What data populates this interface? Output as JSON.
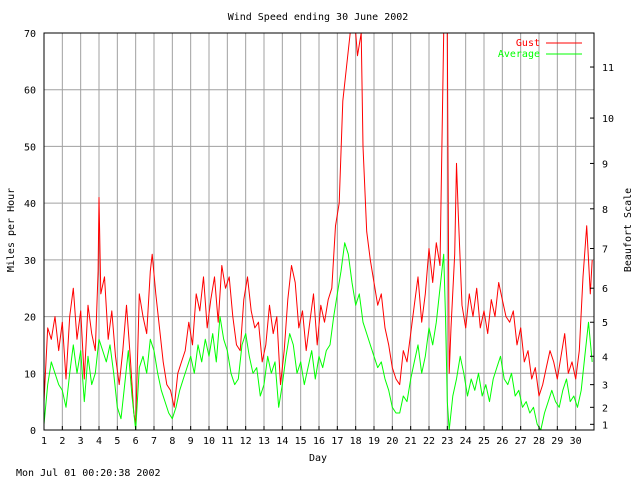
{
  "chart_data": {
    "type": "line",
    "title": "Wind Speed ending 30 June 2002",
    "xlabel": "Day",
    "ylabel": "Miles per Hour",
    "y2label": "Beaufort Scale",
    "footer": "Mon Jul 01 00:20:38 2002",
    "xlim": [
      1,
      31
    ],
    "ylim": [
      0,
      70
    ],
    "x_ticks": [
      "1",
      "2",
      "3",
      "4",
      "5",
      "6",
      "7",
      "8",
      "9",
      "10",
      "11",
      "12",
      "13",
      "14",
      "15",
      "16",
      "17",
      "18",
      "19",
      "20",
      "21",
      "22",
      "23",
      "24",
      "25",
      "26",
      "27",
      "28",
      "29",
      "30"
    ],
    "y_ticks": [
      "0",
      "10",
      "20",
      "30",
      "40",
      "50",
      "60",
      "70"
    ],
    "beaufort_ticks": [
      {
        "label": "1",
        "mph": 1
      },
      {
        "label": "2",
        "mph": 4
      },
      {
        "label": "3",
        "mph": 8
      },
      {
        "label": "4",
        "mph": 13
      },
      {
        "label": "5",
        "mph": 19
      },
      {
        "label": "6",
        "mph": 25
      },
      {
        "label": "7",
        "mph": 32
      },
      {
        "label": "8",
        "mph": 39
      },
      {
        "label": "9",
        "mph": 47
      },
      {
        "label": "10",
        "mph": 55
      },
      {
        "label": "11",
        "mph": 64
      }
    ],
    "grid": true,
    "legend_position": "top-right",
    "series": [
      {
        "name": "Gust",
        "color": "#ff0000",
        "points": [
          [
            1.0,
            5
          ],
          [
            1.2,
            18
          ],
          [
            1.4,
            16
          ],
          [
            1.6,
            20
          ],
          [
            1.8,
            14
          ],
          [
            2.0,
            19
          ],
          [
            2.2,
            9
          ],
          [
            2.4,
            20
          ],
          [
            2.6,
            25
          ],
          [
            2.8,
            16
          ],
          [
            3.0,
            21
          ],
          [
            3.2,
            9
          ],
          [
            3.4,
            22
          ],
          [
            3.6,
            17
          ],
          [
            3.8,
            14
          ],
          [
            3.95,
            28
          ],
          [
            4.0,
            41
          ],
          [
            4.1,
            24
          ],
          [
            4.3,
            27
          ],
          [
            4.5,
            16
          ],
          [
            4.7,
            21
          ],
          [
            4.9,
            13
          ],
          [
            5.1,
            8
          ],
          [
            5.3,
            14
          ],
          [
            5.5,
            22
          ],
          [
            5.7,
            13
          ],
          [
            5.9,
            3
          ],
          [
            6.0,
            1
          ],
          [
            6.2,
            24
          ],
          [
            6.4,
            20
          ],
          [
            6.6,
            17
          ],
          [
            6.8,
            28
          ],
          [
            6.9,
            31
          ],
          [
            7.1,
            24
          ],
          [
            7.3,
            18
          ],
          [
            7.5,
            12
          ],
          [
            7.7,
            8
          ],
          [
            7.9,
            7
          ],
          [
            8.1,
            4
          ],
          [
            8.3,
            10
          ],
          [
            8.5,
            12
          ],
          [
            8.7,
            14
          ],
          [
            8.9,
            19
          ],
          [
            9.1,
            15
          ],
          [
            9.3,
            24
          ],
          [
            9.5,
            21
          ],
          [
            9.7,
            27
          ],
          [
            9.9,
            18
          ],
          [
            10.1,
            23
          ],
          [
            10.3,
            27
          ],
          [
            10.5,
            19
          ],
          [
            10.7,
            29
          ],
          [
            10.9,
            25
          ],
          [
            11.1,
            27
          ],
          [
            11.3,
            20
          ],
          [
            11.5,
            15
          ],
          [
            11.7,
            14
          ],
          [
            11.9,
            23
          ],
          [
            12.1,
            27
          ],
          [
            12.3,
            21
          ],
          [
            12.5,
            18
          ],
          [
            12.7,
            19
          ],
          [
            12.9,
            12
          ],
          [
            13.1,
            15
          ],
          [
            13.3,
            22
          ],
          [
            13.5,
            17
          ],
          [
            13.7,
            20
          ],
          [
            13.9,
            8
          ],
          [
            14.1,
            14
          ],
          [
            14.3,
            23
          ],
          [
            14.5,
            29
          ],
          [
            14.7,
            26
          ],
          [
            14.9,
            18
          ],
          [
            15.1,
            21
          ],
          [
            15.3,
            14
          ],
          [
            15.5,
            19
          ],
          [
            15.7,
            24
          ],
          [
            15.9,
            15
          ],
          [
            16.1,
            22
          ],
          [
            16.3,
            19
          ],
          [
            16.5,
            23
          ],
          [
            16.7,
            25
          ],
          [
            16.9,
            36
          ],
          [
            17.1,
            40
          ],
          [
            17.3,
            58
          ],
          [
            17.5,
            64
          ],
          [
            17.7,
            70
          ],
          [
            17.9,
            70
          ],
          [
            18.0,
            70
          ],
          [
            18.1,
            66
          ],
          [
            18.3,
            70
          ],
          [
            18.4,
            50
          ],
          [
            18.6,
            35
          ],
          [
            18.8,
            30
          ],
          [
            19.0,
            26
          ],
          [
            19.2,
            22
          ],
          [
            19.4,
            24
          ],
          [
            19.6,
            18
          ],
          [
            19.8,
            15
          ],
          [
            20.0,
            11
          ],
          [
            20.2,
            9
          ],
          [
            20.4,
            8
          ],
          [
            20.6,
            14
          ],
          [
            20.8,
            12
          ],
          [
            21.0,
            17
          ],
          [
            21.2,
            22
          ],
          [
            21.4,
            27
          ],
          [
            21.6,
            19
          ],
          [
            21.8,
            24
          ],
          [
            22.0,
            32
          ],
          [
            22.2,
            26
          ],
          [
            22.4,
            33
          ],
          [
            22.6,
            29
          ],
          [
            22.8,
            70
          ],
          [
            22.9,
            70
          ],
          [
            23.0,
            70
          ],
          [
            23.1,
            10
          ],
          [
            23.2,
            18
          ],
          [
            23.4,
            31
          ],
          [
            23.5,
            47
          ],
          [
            23.6,
            38
          ],
          [
            23.8,
            22
          ],
          [
            24.0,
            18
          ],
          [
            24.2,
            24
          ],
          [
            24.4,
            20
          ],
          [
            24.6,
            25
          ],
          [
            24.8,
            18
          ],
          [
            25.0,
            21
          ],
          [
            25.2,
            17
          ],
          [
            25.4,
            23
          ],
          [
            25.6,
            20
          ],
          [
            25.8,
            26
          ],
          [
            26.0,
            23
          ],
          [
            26.2,
            20
          ],
          [
            26.4,
            19
          ],
          [
            26.6,
            21
          ],
          [
            26.8,
            15
          ],
          [
            27.0,
            18
          ],
          [
            27.2,
            12
          ],
          [
            27.4,
            14
          ],
          [
            27.6,
            9
          ],
          [
            27.8,
            11
          ],
          [
            28.0,
            6
          ],
          [
            28.2,
            8
          ],
          [
            28.4,
            11
          ],
          [
            28.6,
            14
          ],
          [
            28.8,
            12
          ],
          [
            29.0,
            9
          ],
          [
            29.2,
            13
          ],
          [
            29.4,
            17
          ],
          [
            29.6,
            10
          ],
          [
            29.8,
            12
          ],
          [
            30.0,
            9
          ],
          [
            30.2,
            14
          ],
          [
            30.4,
            27
          ],
          [
            30.6,
            36
          ],
          [
            30.8,
            24
          ],
          [
            30.9,
            30
          ]
        ]
      },
      {
        "name": "Average",
        "color": "#00ff00",
        "points": [
          [
            1.0,
            1
          ],
          [
            1.2,
            8
          ],
          [
            1.4,
            12
          ],
          [
            1.6,
            10
          ],
          [
            1.8,
            8
          ],
          [
            2.0,
            7
          ],
          [
            2.2,
            4
          ],
          [
            2.4,
            10
          ],
          [
            2.6,
            15
          ],
          [
            2.8,
            10
          ],
          [
            3.0,
            14
          ],
          [
            3.2,
            5
          ],
          [
            3.4,
            13
          ],
          [
            3.6,
            8
          ],
          [
            3.8,
            10
          ],
          [
            4.0,
            16
          ],
          [
            4.2,
            14
          ],
          [
            4.4,
            12
          ],
          [
            4.6,
            15
          ],
          [
            4.8,
            10
          ],
          [
            5.0,
            4
          ],
          [
            5.2,
            2
          ],
          [
            5.4,
            8
          ],
          [
            5.6,
            14
          ],
          [
            5.8,
            6
          ],
          [
            6.0,
            0
          ],
          [
            6.2,
            11
          ],
          [
            6.4,
            13
          ],
          [
            6.6,
            10
          ],
          [
            6.8,
            16
          ],
          [
            7.0,
            14
          ],
          [
            7.2,
            10
          ],
          [
            7.4,
            7
          ],
          [
            7.6,
            5
          ],
          [
            7.8,
            3
          ],
          [
            8.0,
            2
          ],
          [
            8.2,
            4
          ],
          [
            8.4,
            7
          ],
          [
            8.6,
            9
          ],
          [
            8.8,
            11
          ],
          [
            9.0,
            13
          ],
          [
            9.2,
            10
          ],
          [
            9.4,
            15
          ],
          [
            9.6,
            12
          ],
          [
            9.8,
            16
          ],
          [
            10.0,
            13
          ],
          [
            10.2,
            17
          ],
          [
            10.4,
            12
          ],
          [
            10.6,
            20
          ],
          [
            10.8,
            16
          ],
          [
            11.0,
            14
          ],
          [
            11.2,
            10
          ],
          [
            11.4,
            8
          ],
          [
            11.6,
            9
          ],
          [
            11.8,
            15
          ],
          [
            12.0,
            17
          ],
          [
            12.2,
            13
          ],
          [
            12.4,
            10
          ],
          [
            12.6,
            11
          ],
          [
            12.8,
            6
          ],
          [
            13.0,
            8
          ],
          [
            13.2,
            13
          ],
          [
            13.4,
            10
          ],
          [
            13.6,
            12
          ],
          [
            13.8,
            4
          ],
          [
            14.0,
            8
          ],
          [
            14.2,
            13
          ],
          [
            14.4,
            17
          ],
          [
            14.6,
            15
          ],
          [
            14.8,
            10
          ],
          [
            15.0,
            12
          ],
          [
            15.2,
            8
          ],
          [
            15.4,
            11
          ],
          [
            15.6,
            14
          ],
          [
            15.8,
            9
          ],
          [
            16.0,
            13
          ],
          [
            16.2,
            11
          ],
          [
            16.4,
            14
          ],
          [
            16.6,
            15
          ],
          [
            16.8,
            20
          ],
          [
            17.0,
            24
          ],
          [
            17.2,
            28
          ],
          [
            17.4,
            33
          ],
          [
            17.6,
            31
          ],
          [
            17.8,
            26
          ],
          [
            18.0,
            22
          ],
          [
            18.2,
            24
          ],
          [
            18.4,
            19
          ],
          [
            18.6,
            17
          ],
          [
            18.8,
            15
          ],
          [
            19.0,
            13
          ],
          [
            19.2,
            11
          ],
          [
            19.4,
            12
          ],
          [
            19.6,
            9
          ],
          [
            19.8,
            7
          ],
          [
            20.0,
            4
          ],
          [
            20.2,
            3
          ],
          [
            20.4,
            3
          ],
          [
            20.6,
            6
          ],
          [
            20.8,
            5
          ],
          [
            21.0,
            9
          ],
          [
            21.2,
            12
          ],
          [
            21.4,
            15
          ],
          [
            21.6,
            10
          ],
          [
            21.8,
            13
          ],
          [
            22.0,
            18
          ],
          [
            22.2,
            15
          ],
          [
            22.4,
            19
          ],
          [
            22.6,
            25
          ],
          [
            22.8,
            31
          ],
          [
            22.9,
            20
          ],
          [
            23.0,
            5
          ],
          [
            23.1,
            0
          ],
          [
            23.3,
            6
          ],
          [
            23.5,
            9
          ],
          [
            23.7,
            13
          ],
          [
            23.9,
            10
          ],
          [
            24.1,
            6
          ],
          [
            24.3,
            9
          ],
          [
            24.5,
            7
          ],
          [
            24.7,
            10
          ],
          [
            24.9,
            6
          ],
          [
            25.1,
            8
          ],
          [
            25.3,
            5
          ],
          [
            25.5,
            9
          ],
          [
            25.7,
            11
          ],
          [
            25.9,
            13
          ],
          [
            26.1,
            9
          ],
          [
            26.3,
            8
          ],
          [
            26.5,
            10
          ],
          [
            26.7,
            6
          ],
          [
            26.9,
            7
          ],
          [
            27.1,
            4
          ],
          [
            27.3,
            5
          ],
          [
            27.5,
            3
          ],
          [
            27.7,
            4
          ],
          [
            27.9,
            1
          ],
          [
            28.1,
            0
          ],
          [
            28.3,
            3
          ],
          [
            28.5,
            5
          ],
          [
            28.7,
            7
          ],
          [
            28.9,
            5
          ],
          [
            29.1,
            4
          ],
          [
            29.3,
            7
          ],
          [
            29.5,
            9
          ],
          [
            29.7,
            5
          ],
          [
            29.9,
            6
          ],
          [
            30.1,
            4
          ],
          [
            30.3,
            7
          ],
          [
            30.5,
            13
          ],
          [
            30.7,
            19
          ],
          [
            30.9,
            12
          ]
        ]
      }
    ]
  }
}
